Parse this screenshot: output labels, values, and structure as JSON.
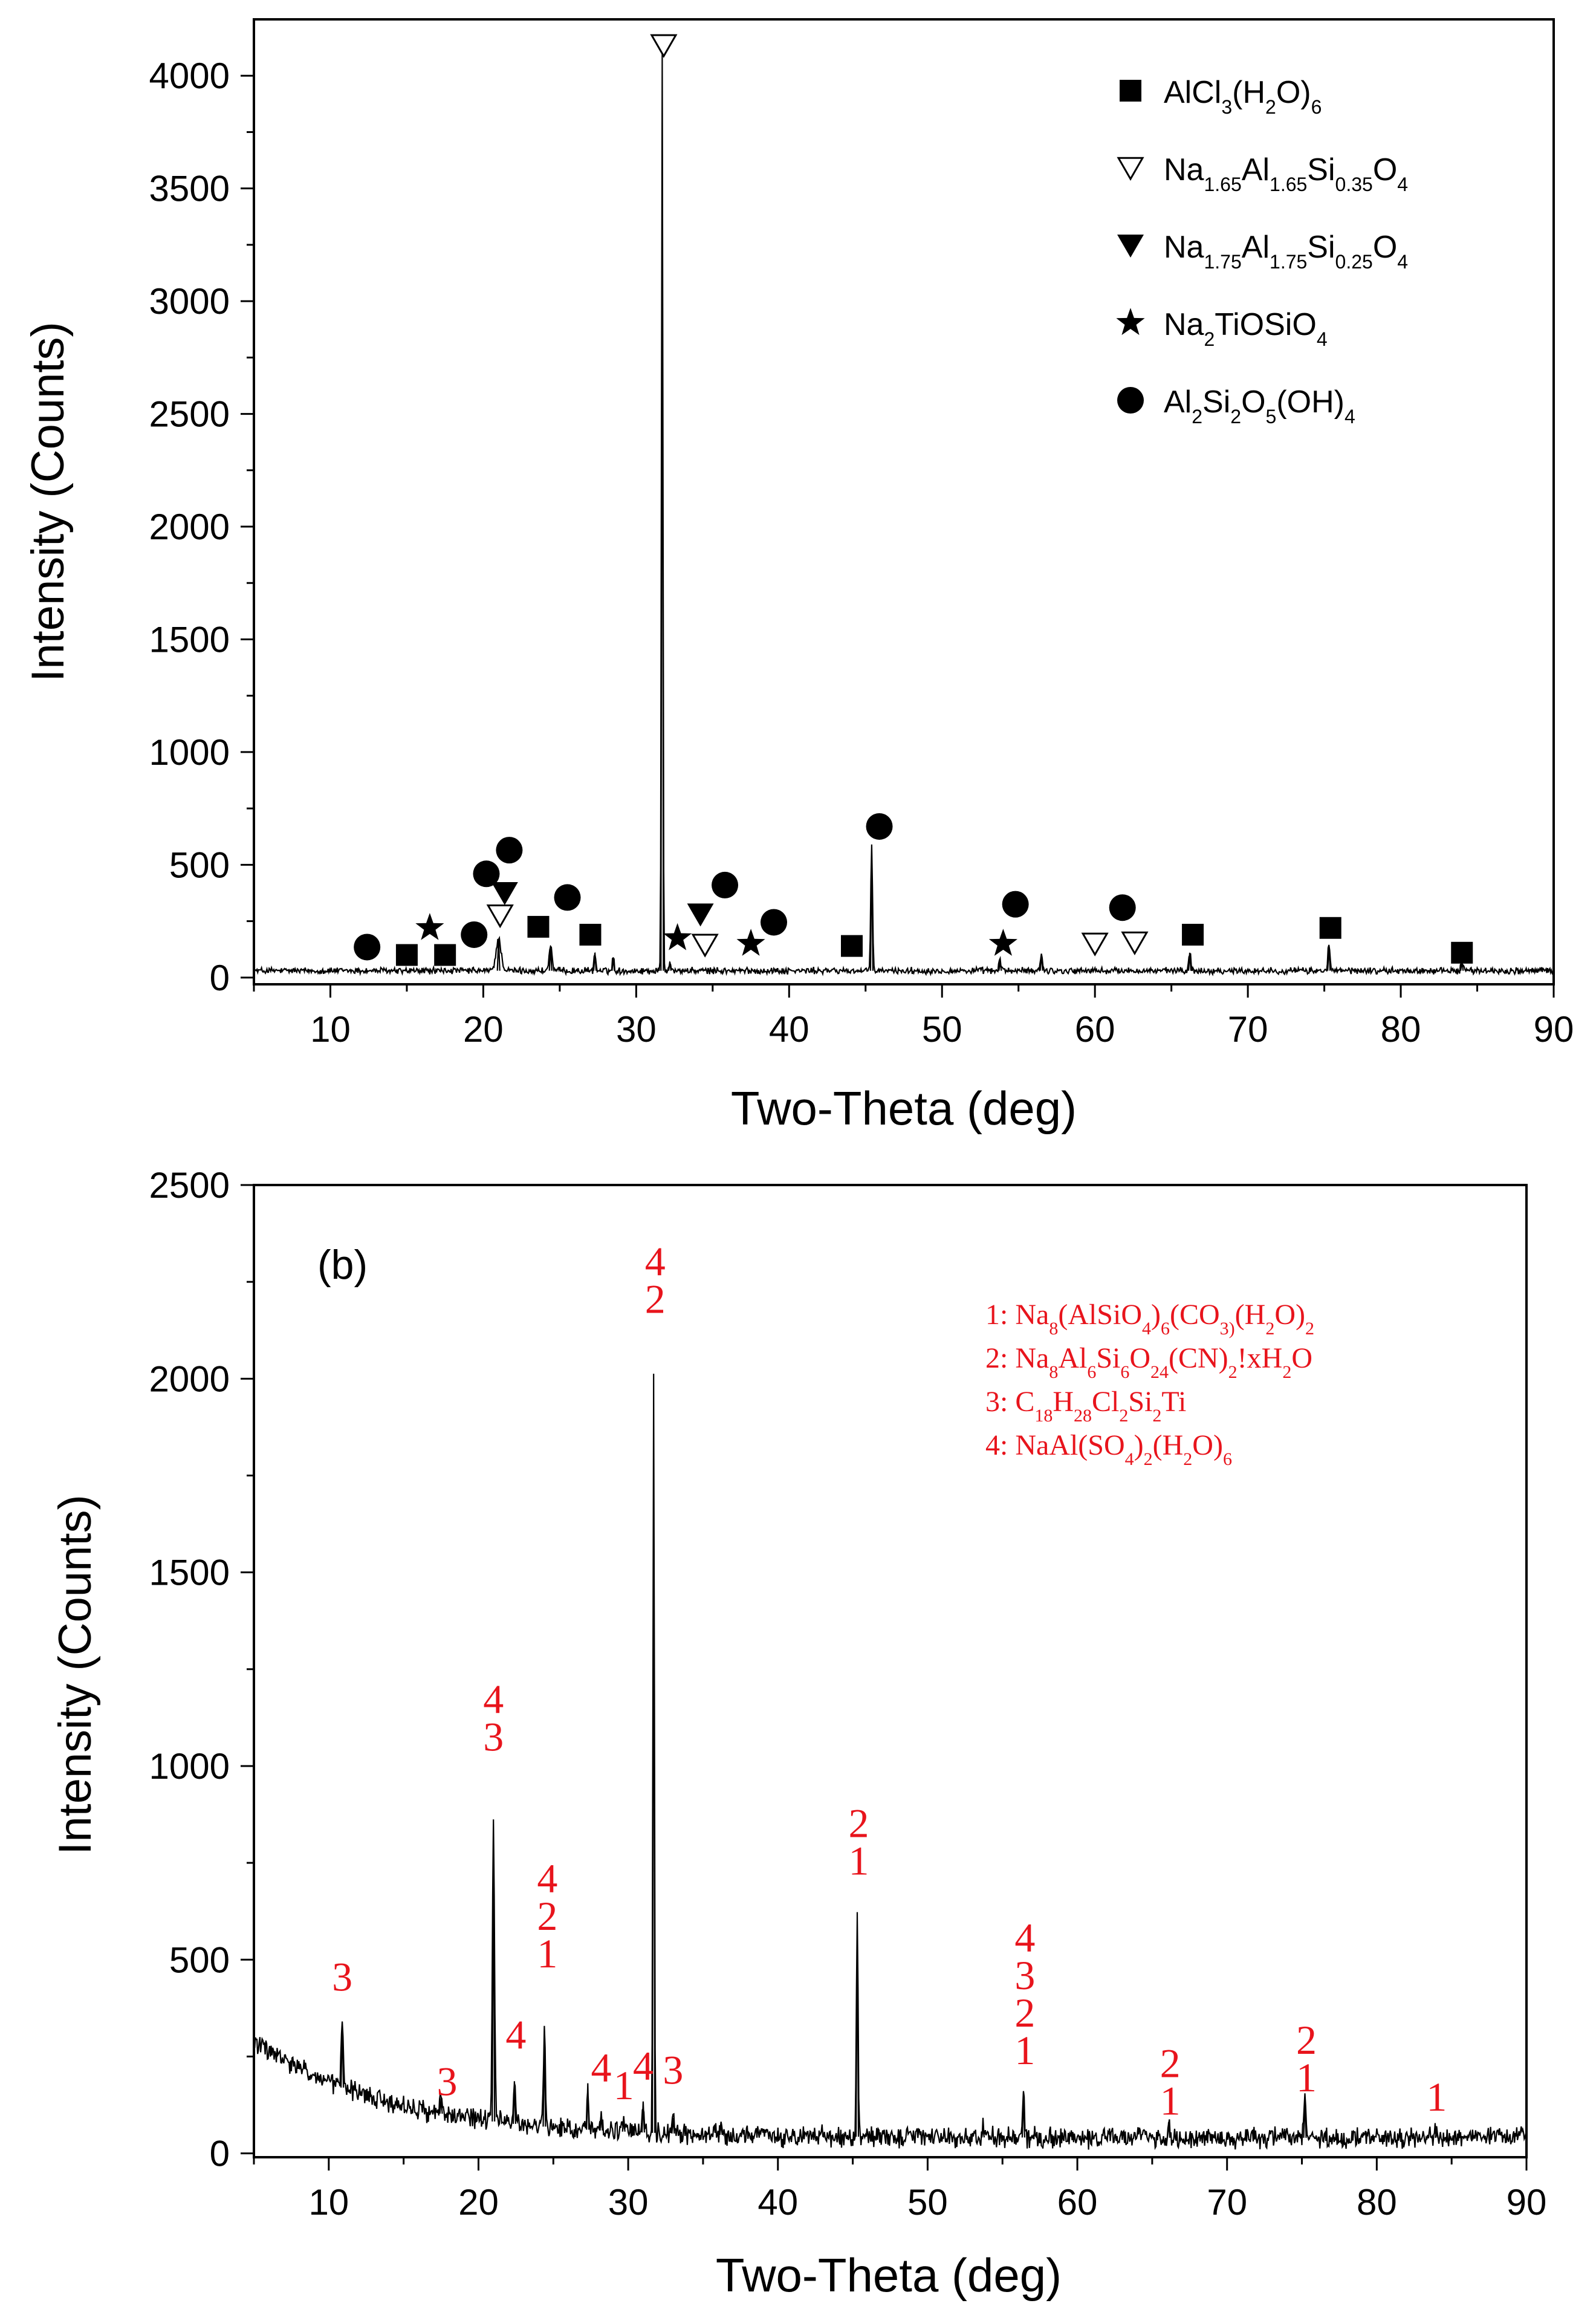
{
  "chart_data": [
    {
      "id": "a",
      "type": "line",
      "title": "",
      "xlabel": "Two-Theta (deg)",
      "ylabel": "Intensity (Counts)",
      "xlim": [
        5,
        90
      ],
      "ylim": [
        -30,
        4250
      ],
      "xticks": [
        10,
        20,
        30,
        40,
        50,
        60,
        70,
        80,
        90
      ],
      "yticks": [
        0,
        500,
        1000,
        1500,
        2000,
        2500,
        3000,
        3500,
        4000
      ],
      "baseline": 30,
      "peaks": [
        {
          "x": 21.0,
          "y": 140,
          "w": 0.35
        },
        {
          "x": 24.4,
          "y": 110,
          "w": 0.2
        },
        {
          "x": 27.3,
          "y": 80,
          "w": 0.12
        },
        {
          "x": 28.5,
          "y": 60,
          "w": 0.12
        },
        {
          "x": 31.7,
          "y": 4070,
          "w": 0.1
        },
        {
          "x": 32.2,
          "y": 40,
          "w": 0.15
        },
        {
          "x": 45.4,
          "y": 560,
          "w": 0.12
        },
        {
          "x": 53.8,
          "y": 40,
          "w": 0.2
        },
        {
          "x": 56.5,
          "y": 75,
          "w": 0.15
        },
        {
          "x": 66.2,
          "y": 80,
          "w": 0.15
        },
        {
          "x": 75.3,
          "y": 115,
          "w": 0.15
        },
        {
          "x": 84.0,
          "y": 40,
          "w": 0.15
        }
      ],
      "legend": {
        "placement": "top-right",
        "entries": [
          {
            "symbol": "square",
            "formula": [
              [
                "t",
                "AlCl"
              ],
              [
                "sub",
                "3"
              ],
              [
                "t",
                "(H"
              ],
              [
                "sub",
                "2"
              ],
              [
                "t",
                "O)"
              ],
              [
                "sub",
                "6"
              ]
            ]
          },
          {
            "symbol": "triangle-down-open",
            "formula": [
              [
                "t",
                "Na"
              ],
              [
                "sub",
                "1.65"
              ],
              [
                "t",
                "Al"
              ],
              [
                "sub",
                "1.65"
              ],
              [
                "t",
                "Si"
              ],
              [
                "sub",
                "0.35"
              ],
              [
                "t",
                "O"
              ],
              [
                "sub",
                "4"
              ]
            ]
          },
          {
            "symbol": "triangle-down",
            "formula": [
              [
                "t",
                "Na"
              ],
              [
                "sub",
                "1.75"
              ],
              [
                "t",
                "Al"
              ],
              [
                "sub",
                "1.75"
              ],
              [
                "t",
                "Si"
              ],
              [
                "sub",
                "0.25"
              ],
              [
                "t",
                "O"
              ],
              [
                "sub",
                "4"
              ]
            ]
          },
          {
            "symbol": "star",
            "formula": [
              [
                "t",
                "Na"
              ],
              [
                "sub",
                "2"
              ],
              [
                "t",
                "TiOSiO"
              ],
              [
                "sub",
                "4"
              ]
            ]
          },
          {
            "symbol": "circle",
            "formula": [
              [
                "t",
                "Al"
              ],
              [
                "sub",
                "2"
              ],
              [
                "t",
                "Si"
              ],
              [
                "sub",
                "2"
              ],
              [
                "t",
                "O"
              ],
              [
                "sub",
                "5"
              ],
              [
                "t",
                "(OH)"
              ],
              [
                "sub",
                "4"
              ]
            ]
          }
        ]
      },
      "markers": [
        {
          "symbol": "circle",
          "x": 12.4,
          "y": 135
        },
        {
          "symbol": "circle",
          "x": 19.4,
          "y": 190
        },
        {
          "symbol": "circle",
          "x": 20.2,
          "y": 460
        },
        {
          "symbol": "circle",
          "x": 21.7,
          "y": 565
        },
        {
          "symbol": "circle",
          "x": 25.5,
          "y": 355
        },
        {
          "symbol": "circle",
          "x": 35.8,
          "y": 410
        },
        {
          "symbol": "circle",
          "x": 39.0,
          "y": 245
        },
        {
          "symbol": "circle",
          "x": 45.9,
          "y": 670
        },
        {
          "symbol": "circle",
          "x": 54.8,
          "y": 325
        },
        {
          "symbol": "circle",
          "x": 61.8,
          "y": 310
        },
        {
          "symbol": "square",
          "x": 15.0,
          "y": 100
        },
        {
          "symbol": "square",
          "x": 17.5,
          "y": 100
        },
        {
          "symbol": "square",
          "x": 23.6,
          "y": 225
        },
        {
          "symbol": "square",
          "x": 27.0,
          "y": 190
        },
        {
          "symbol": "square",
          "x": 44.1,
          "y": 140
        },
        {
          "symbol": "square",
          "x": 66.4,
          "y": 190
        },
        {
          "symbol": "square",
          "x": 75.4,
          "y": 220
        },
        {
          "symbol": "square",
          "x": 84.0,
          "y": 110
        },
        {
          "symbol": "star",
          "x": 16.5,
          "y": 220
        },
        {
          "symbol": "star",
          "x": 32.7,
          "y": 175
        },
        {
          "symbol": "star",
          "x": 37.5,
          "y": 150
        },
        {
          "symbol": "star",
          "x": 54.0,
          "y": 150
        },
        {
          "symbol": "triangle-down",
          "x": 21.4,
          "y": 375
        },
        {
          "symbol": "triangle-down",
          "x": 34.2,
          "y": 280
        },
        {
          "symbol": "triangle-down-open",
          "x": 21.1,
          "y": 275
        },
        {
          "symbol": "triangle-down-open",
          "x": 31.8,
          "y": 4135
        },
        {
          "symbol": "triangle-down-open",
          "x": 34.5,
          "y": 145
        },
        {
          "symbol": "triangle-down-open",
          "x": 60.0,
          "y": 150
        },
        {
          "symbol": "triangle-down-open",
          "x": 62.6,
          "y": 155
        }
      ]
    },
    {
      "id": "b",
      "type": "line",
      "title": "",
      "panel_label": "(b)",
      "xlabel": "Two-Theta (deg)",
      "ylabel": "Intensity (Counts)",
      "xlim": [
        5,
        90
      ],
      "ylim": [
        -10,
        2500
      ],
      "xticks": [
        10,
        20,
        30,
        40,
        50,
        60,
        70,
        80,
        90
      ],
      "yticks": [
        0,
        500,
        1000,
        1500,
        2000,
        2500
      ],
      "background": {
        "start": 290,
        "end": 40,
        "decay": 9
      },
      "peaks": [
        {
          "x": 10.9,
          "y": 170,
          "w": 0.15
        },
        {
          "x": 17.5,
          "y": 40,
          "w": 0.2
        },
        {
          "x": 21.0,
          "y": 780,
          "w": 0.15
        },
        {
          "x": 22.4,
          "y": 110,
          "w": 0.15
        },
        {
          "x": 24.4,
          "y": 240,
          "w": 0.15
        },
        {
          "x": 27.3,
          "y": 120,
          "w": 0.12
        },
        {
          "x": 28.2,
          "y": 50,
          "w": 0.12
        },
        {
          "x": 29.7,
          "y": 40,
          "w": 0.12
        },
        {
          "x": 31.0,
          "y": 80,
          "w": 0.12
        },
        {
          "x": 31.7,
          "y": 1960,
          "w": 0.1
        },
        {
          "x": 33.0,
          "y": 40,
          "w": 0.15
        },
        {
          "x": 36.2,
          "y": 30,
          "w": 0.2
        },
        {
          "x": 45.3,
          "y": 580,
          "w": 0.12
        },
        {
          "x": 53.7,
          "y": 25,
          "w": 0.2
        },
        {
          "x": 56.4,
          "y": 110,
          "w": 0.15
        },
        {
          "x": 66.1,
          "y": 40,
          "w": 0.15
        },
        {
          "x": 75.2,
          "y": 100,
          "w": 0.15
        },
        {
          "x": 84.0,
          "y": 30,
          "w": 0.15
        }
      ],
      "legend": {
        "placement": "top-right",
        "entries": [
          [
            [
              "t",
              "1: Na"
            ],
            [
              "sub",
              "8"
            ],
            [
              "t",
              "(AlSiO"
            ],
            [
              "sub",
              "4"
            ],
            [
              "t",
              ")"
            ],
            [
              "sub",
              "6"
            ],
            [
              "t",
              "(CO"
            ],
            [
              "sub",
              "3)"
            ],
            [
              "t",
              "(H"
            ],
            [
              "sub",
              "2"
            ],
            [
              "t",
              "O)"
            ],
            [
              "sub",
              "2"
            ]
          ],
          [
            [
              "t",
              "2: Na"
            ],
            [
              "sub",
              "8"
            ],
            [
              "t",
              "Al"
            ],
            [
              "sub",
              "6"
            ],
            [
              "t",
              "Si"
            ],
            [
              "sub",
              "6"
            ],
            [
              "t",
              "O"
            ],
            [
              "sub",
              "24"
            ],
            [
              "t",
              "(CN)"
            ],
            [
              "sub",
              "2"
            ],
            [
              "t",
              "!xH"
            ],
            [
              "sub",
              "2"
            ],
            [
              "t",
              "O"
            ]
          ],
          [
            [
              "t",
              "3: C"
            ],
            [
              "sub",
              "18"
            ],
            [
              "t",
              "H"
            ],
            [
              "sub",
              "28"
            ],
            [
              "t",
              "Cl"
            ],
            [
              "sub",
              "2"
            ],
            [
              "t",
              "Si"
            ],
            [
              "sub",
              "2"
            ],
            [
              "t",
              "Ti"
            ]
          ],
          [
            [
              "t",
              "4: NaAl(SO"
            ],
            [
              "sub",
              "4"
            ],
            [
              "t",
              ")"
            ],
            [
              "sub",
              "2"
            ],
            [
              "t",
              "(H"
            ],
            [
              "sub",
              "2"
            ],
            [
              "t",
              "O)"
            ],
            [
              "sub",
              "6"
            ]
          ]
        ]
      },
      "peak_labels": [
        {
          "x": 10.9,
          "y": 420,
          "stack": [
            "3"
          ]
        },
        {
          "x": 17.9,
          "y": 150,
          "stack": [
            "3"
          ]
        },
        {
          "x": 21.0,
          "y": 1040,
          "stack": [
            "4",
            "3"
          ]
        },
        {
          "x": 22.5,
          "y": 270,
          "stack": [
            "4"
          ]
        },
        {
          "x": 24.6,
          "y": 480,
          "stack": [
            "4",
            "2",
            "1"
          ]
        },
        {
          "x": 28.2,
          "y": 185,
          "stack": [
            "4"
          ]
        },
        {
          "x": 29.7,
          "y": 140,
          "stack": [
            "1"
          ]
        },
        {
          "x": 31.0,
          "y": 190,
          "stack": [
            "4"
          ]
        },
        {
          "x": 31.8,
          "y": 2170,
          "stack": [
            "4",
            "2"
          ]
        },
        {
          "x": 33.0,
          "y": 180,
          "stack": [
            "3"
          ]
        },
        {
          "x": 45.4,
          "y": 720,
          "stack": [
            "2",
            "1"
          ]
        },
        {
          "x": 56.5,
          "y": 230,
          "stack": [
            "4",
            "3",
            "2",
            "1"
          ]
        },
        {
          "x": 66.2,
          "y": 100,
          "stack": [
            "2",
            "1"
          ]
        },
        {
          "x": 75.3,
          "y": 160,
          "stack": [
            "2",
            "1"
          ]
        },
        {
          "x": 84.0,
          "y": 110,
          "stack": [
            "1"
          ]
        }
      ]
    }
  ]
}
